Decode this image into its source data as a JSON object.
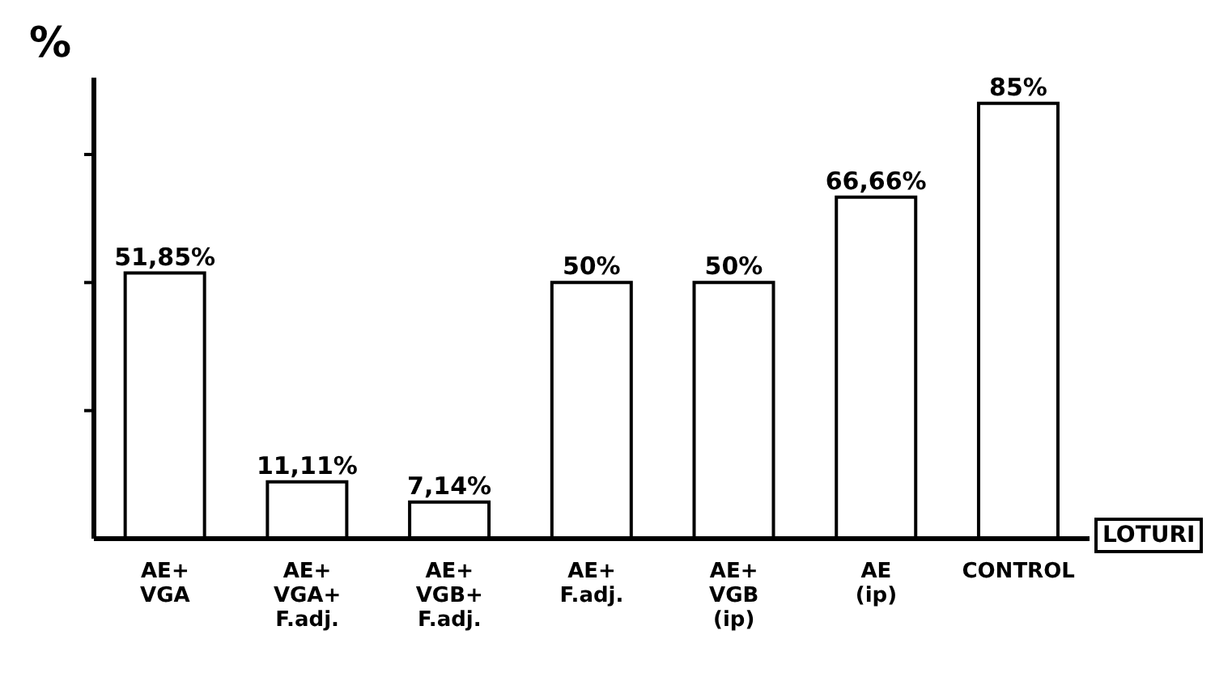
{
  "chart_data": {
    "type": "bar",
    "ylabel": "%",
    "xlabel": "LOTURI",
    "categories": [
      "AE+\nVGA",
      "AE+\nVGA+\nF.adj.",
      "AE+\nVGB+\nF.adj.",
      "AE+\nF.adj.",
      "AE+\nVGB\n(ip)",
      "AE\n(ip)",
      "CONTROL"
    ],
    "values": [
      51.85,
      11.11,
      7.14,
      50,
      50,
      66.66,
      85
    ],
    "value_labels": [
      "51,85%",
      "11,11%",
      "7,14%",
      "50%",
      "50%",
      "66,66%",
      "85%"
    ],
    "color": "#ffffff",
    "ylim": [
      0,
      90
    ],
    "yticks": [
      {
        "value": 25,
        "label": null
      },
      {
        "value": 50,
        "label": null
      },
      {
        "value": 75,
        "label": null
      }
    ],
    "tick_labels": "x",
    "grid": false,
    "legend": false
  }
}
